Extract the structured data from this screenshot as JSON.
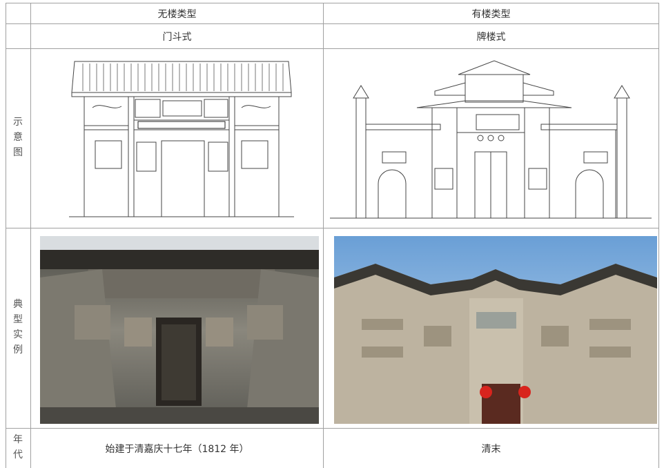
{
  "table": {
    "columns": [
      "无楼类型",
      "有楼类型"
    ],
    "subtypes": [
      "门斗式",
      "牌楼式"
    ],
    "rows": [
      {
        "label": "示意图"
      },
      {
        "label": "典型实例"
      },
      {
        "label": "年代",
        "cells": [
          "始建于清嘉庆十七年（1812 年）",
          "清末"
        ]
      }
    ]
  }
}
